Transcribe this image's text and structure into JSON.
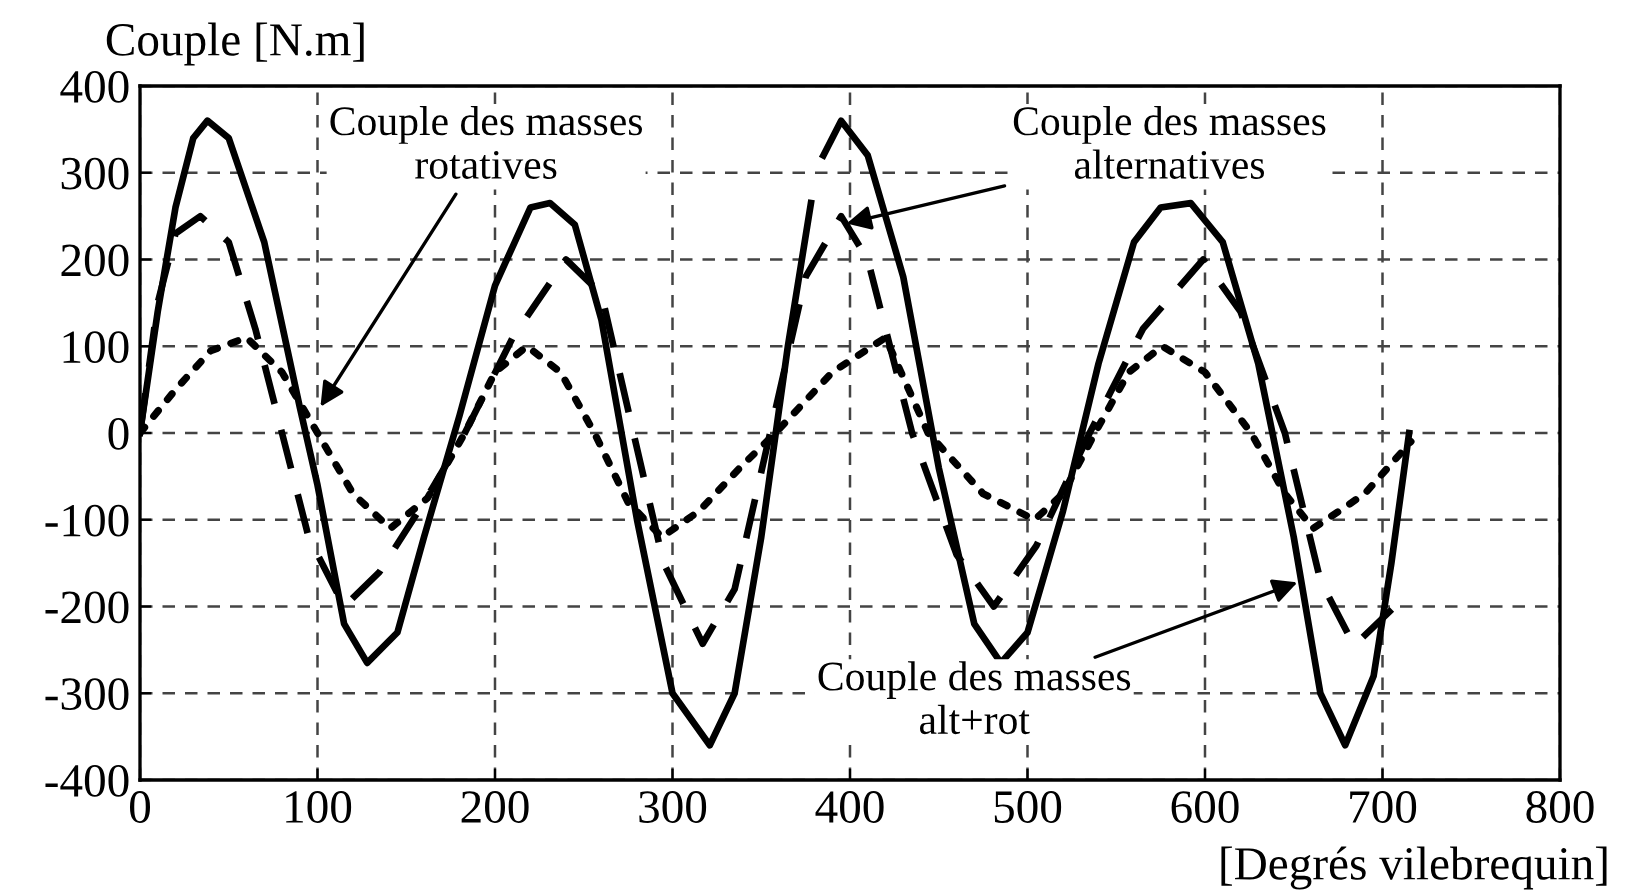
{
  "chart_data": {
    "type": "line",
    "xlabel": "[Degrés vilebrequin]",
    "ylabel": "Couple [N.m]",
    "xlim": [
      0,
      800
    ],
    "ylim": [
      -400,
      400
    ],
    "xticks": [
      0,
      100,
      200,
      300,
      400,
      500,
      600,
      700,
      800
    ],
    "yticks": [
      -400,
      -300,
      -200,
      -100,
      0,
      100,
      200,
      300,
      400
    ],
    "grid": true,
    "series": [
      {
        "color": "#000000",
        "line_style": "solid",
        "x": [
          0,
          10,
          20,
          30,
          38,
          50,
          70,
          90,
          100,
          115,
          128,
          145,
          160,
          180,
          200,
          220,
          231,
          245,
          260,
          280,
          300,
          321,
          335,
          350,
          365,
          378,
          380,
          385,
          395,
          410,
          430,
          450,
          470,
          485,
          500,
          520,
          540,
          560,
          575,
          592,
          610,
          630,
          650,
          665,
          679,
          695,
          705,
          715
        ],
        "values": [
          0,
          140,
          260,
          340,
          360,
          340,
          220,
          30,
          -60,
          -220,
          -265,
          -230,
          -120,
          20,
          170,
          260,
          265,
          240,
          130,
          -100,
          -300,
          -360,
          -300,
          -120,
          100,
          265,
          null,
          320,
          360,
          320,
          180,
          -40,
          -220,
          -265,
          -230,
          -90,
          80,
          220,
          260,
          265,
          220,
          80,
          -120,
          -300,
          -360,
          -280,
          -150,
          0
        ]
      },
      {
        "color": "#000000",
        "line_style": "dashed",
        "x": [
          0,
          10,
          20,
          34,
          50,
          65,
          80,
          95,
          115,
          135,
          160,
          183,
          210,
          240,
          260,
          278,
          295,
          317,
          335,
          355,
          375,
          395,
          410,
          435,
          460,
          481,
          505,
          535,
          565,
          599,
          620,
          645,
          665,
          684,
          707
        ],
        "values": [
          0,
          150,
          230,
          250,
          220,
          120,
          0,
          -120,
          -200,
          -160,
          -80,
          0,
          110,
          200,
          160,
          0,
          -150,
          -243,
          -180,
          0,
          180,
          250,
          200,
          0,
          -140,
          -200,
          -130,
          0,
          120,
          200,
          140,
          0,
          -170,
          -245,
          -200
        ]
      },
      {
        "color": "#000000",
        "line_style": "dotted",
        "x": [
          0,
          20,
          40,
          60,
          80,
          100,
          120,
          141,
          162,
          183,
          200,
          218,
          237,
          256,
          275,
          294,
          315,
          338,
          358,
          390,
          420,
          444,
          475,
          504,
          520,
          538,
          557,
          576,
          600,
          626,
          645,
          661,
          690,
          716
        ],
        "values": [
          0,
          50,
          95,
          110,
          70,
          0,
          -70,
          -110,
          -75,
          0,
          70,
          100,
          70,
          0,
          -80,
          -120,
          -90,
          -40,
          0,
          70,
          110,
          0,
          -70,
          -100,
          -70,
          0,
          70,
          100,
          70,
          0,
          -70,
          -110,
          -70,
          -10
        ]
      }
    ],
    "annotations": [
      {
        "text": "Couple des masses\nrotatives",
        "x": 100,
        "y": 25
      },
      {
        "text": "Couple des masses\nalternatives",
        "x": 395,
        "y": 240
      },
      {
        "text": "Couple des masses\nalt+rot",
        "x": 655,
        "y": -170
      }
    ]
  }
}
